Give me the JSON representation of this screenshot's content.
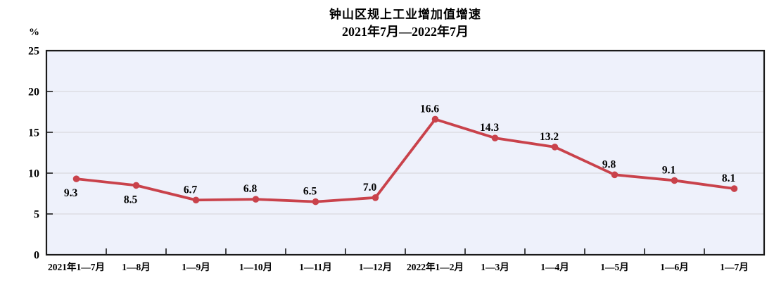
{
  "chart_data": {
    "type": "line",
    "title": "钟山区规上工业增加值增速",
    "subtitle": "2021年7月—2022年7月",
    "ylabel": "%",
    "xlabel": "",
    "categories": [
      "2021年1—7月",
      "1—8月",
      "1—9月",
      "1—10月",
      "1—11月",
      "1—12月",
      "2022年1—2月",
      "1—3月",
      "1—4月",
      "1—5月",
      "1—6月",
      "1—7月"
    ],
    "values": [
      9.3,
      8.5,
      6.7,
      6.8,
      6.5,
      7.0,
      16.6,
      14.3,
      13.2,
      9.8,
      9.1,
      8.1
    ],
    "data_labels": [
      "9.3",
      "8.5",
      "6.7",
      "6.8",
      "6.5",
      "7.0",
      "16.6",
      "14.3",
      "13.2",
      "9.8",
      "9.1",
      "8.1"
    ],
    "label_position": [
      "below",
      "below",
      "above",
      "above",
      "above",
      "above",
      "above",
      "above",
      "above",
      "above",
      "above",
      "above"
    ],
    "ylim": [
      0,
      25
    ],
    "ytick_step": 5,
    "grid": true,
    "legend": "none",
    "colors": {
      "line": "#c9424b",
      "marker": "#c9424b",
      "plot_bg": "#eef1fb",
      "grid": "#d9d9de",
      "border": "#1a1a1a",
      "text": "#000000"
    }
  }
}
